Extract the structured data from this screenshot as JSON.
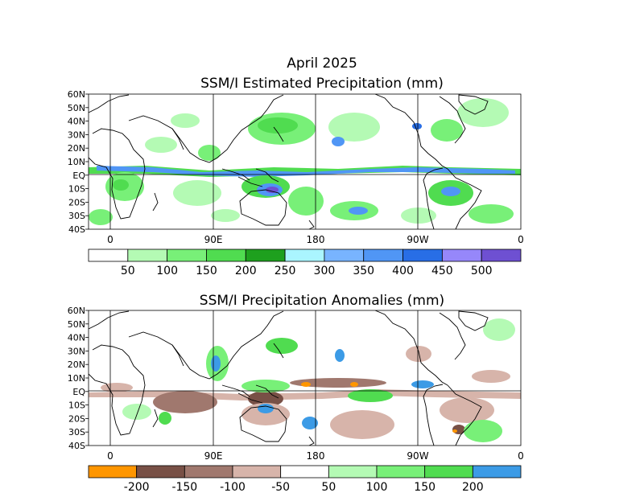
{
  "header": {
    "month": "April 2025",
    "panel1_title": "SSM/I Estimated Precipitation (mm)",
    "panel2_title": "SSM/I Precipitation Anomalies (mm)"
  },
  "axes": {
    "lat_labels": [
      "60N",
      "50N",
      "40N",
      "30N",
      "20N",
      "10N",
      "EQ",
      "10S",
      "20S",
      "30S",
      "40S"
    ],
    "lon_labels": [
      "0",
      "90E",
      "180",
      "90W",
      "0"
    ]
  },
  "legend1": {
    "colors": [
      "#ffffff",
      "#b4fab4",
      "#78f078",
      "#50dc50",
      "#1ea01e",
      "#aaf5ff",
      "#78b4ff",
      "#5096f5",
      "#286ee6",
      "#9687fa",
      "#6e50d2"
    ],
    "labels": [
      "50",
      "100",
      "150",
      "200",
      "250",
      "300",
      "350",
      "400",
      "450",
      "500"
    ]
  },
  "legend2": {
    "colors": [
      "#ff9600",
      "#785046",
      "#a0786e",
      "#d7b4aa",
      "#ffffff",
      "#b4fab4",
      "#78f078",
      "#50dc50",
      "#3c9be6"
    ],
    "labels": [
      "-200",
      "-150",
      "-100",
      "-50",
      "50",
      "100",
      "150",
      "200"
    ]
  }
}
